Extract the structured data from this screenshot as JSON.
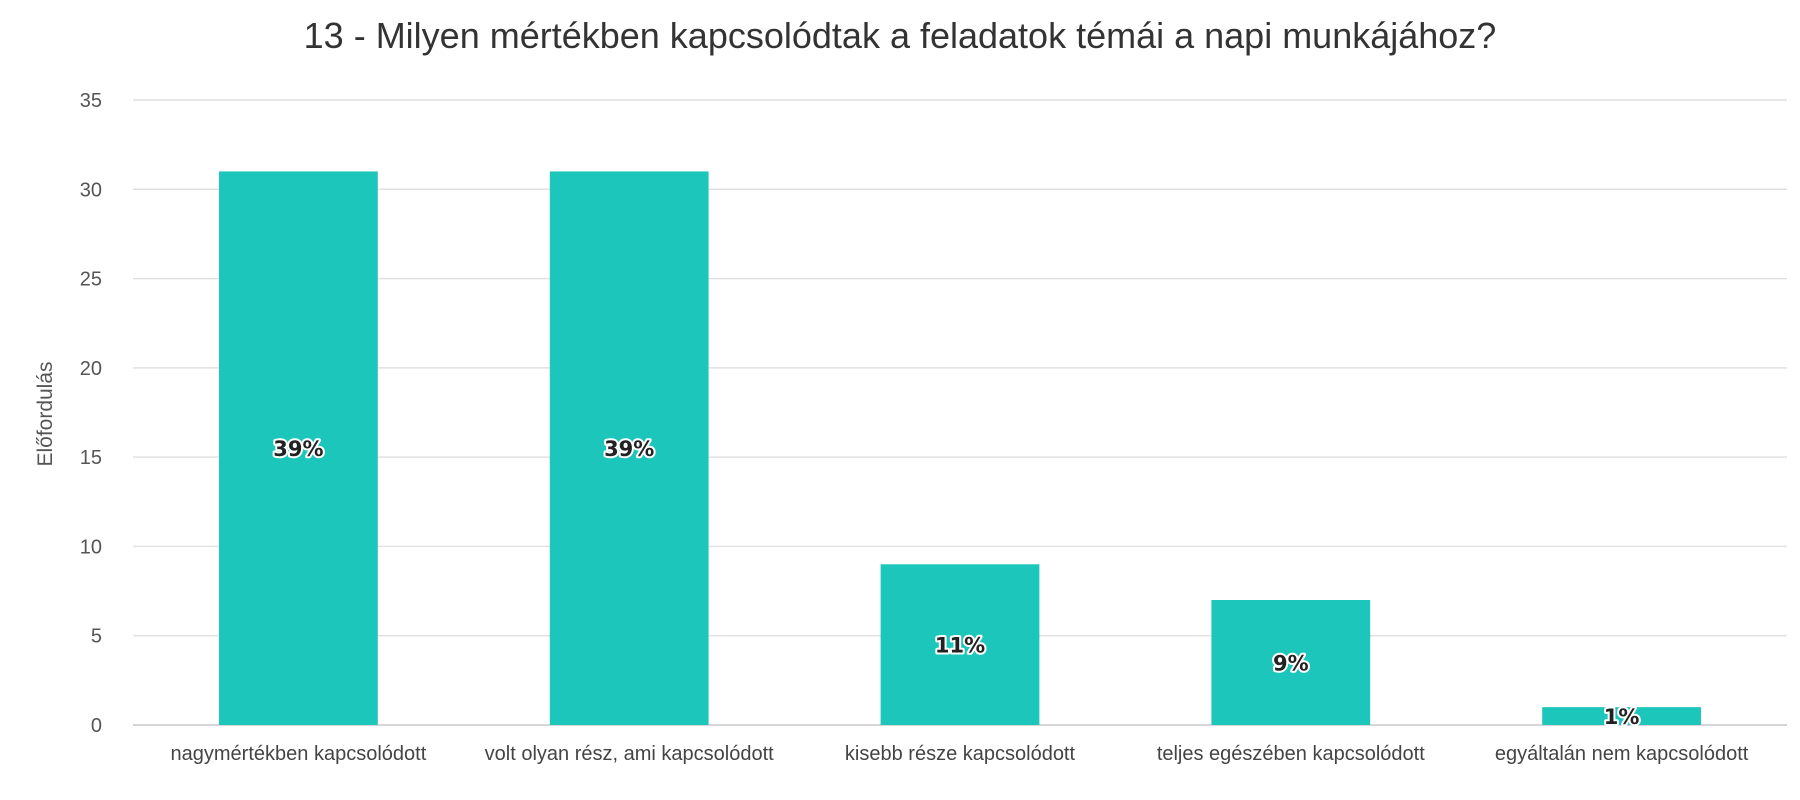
{
  "chart_data": {
    "type": "bar",
    "title": "13 - Milyen mértékben kapcsolódtak a feladatok témái a napi munkájához?",
    "xlabel": "",
    "ylabel": "Előfordulás",
    "ylim": [
      0,
      35
    ],
    "yticks": [
      0,
      5,
      10,
      15,
      20,
      25,
      30,
      35
    ],
    "grid": true,
    "legend": "none",
    "bar_color": "#1DC6BB",
    "categories": [
      "nagymértékben kapcsolódott",
      "volt olyan rész, ami kapcsolódott",
      "kisebb része kapcsolódott",
      "teljes egészében kapcsolódott",
      "egyáltalán nem kapcsolódott"
    ],
    "values": [
      31,
      31,
      9,
      7,
      1
    ],
    "data_labels": [
      "39%",
      "39%",
      "11%",
      "9%",
      "1%"
    ]
  }
}
